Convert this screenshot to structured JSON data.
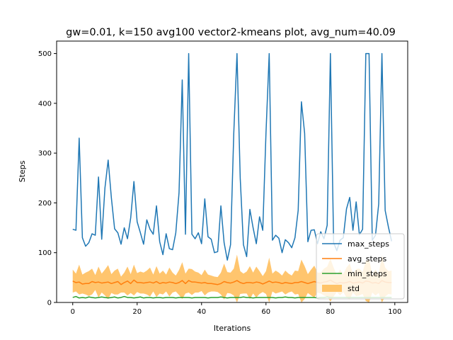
{
  "chart_data": {
    "type": "line",
    "title": "gw=0.01, k=150 avg100 vector2-kmeans plot, avg_num=40.09",
    "xlabel": "Iterations",
    "ylabel": "Steps",
    "xlim": [
      -5,
      104
    ],
    "ylim": [
      0,
      525
    ],
    "xticks": [
      0,
      20,
      40,
      60,
      80,
      100
    ],
    "yticks": [
      0,
      100,
      200,
      300,
      400,
      500
    ],
    "grid": false,
    "legend_position": "lower-right",
    "x": [
      0,
      1,
      2,
      3,
      4,
      5,
      6,
      7,
      8,
      9,
      10,
      11,
      12,
      13,
      14,
      15,
      16,
      17,
      18,
      19,
      20,
      21,
      22,
      23,
      24,
      25,
      26,
      27,
      28,
      29,
      30,
      31,
      32,
      33,
      34,
      35,
      36,
      37,
      38,
      39,
      40,
      41,
      42,
      43,
      44,
      45,
      46,
      47,
      48,
      49,
      50,
      51,
      52,
      53,
      54,
      55,
      56,
      57,
      58,
      59,
      60,
      61,
      62,
      63,
      64,
      65,
      66,
      67,
      68,
      69,
      70,
      71,
      72,
      73,
      74,
      75,
      76,
      77,
      78,
      79,
      80,
      81,
      82,
      83,
      84,
      85,
      86,
      87,
      88,
      89,
      90,
      91,
      92,
      93,
      94,
      95,
      96,
      97,
      98,
      99
    ],
    "series": [
      {
        "name": "max_steps",
        "color": "#1f77b4",
        "kind": "line",
        "values": [
          147,
          145,
          330,
          130,
          113,
          120,
          138,
          135,
          252,
          127,
          230,
          286,
          210,
          148,
          140,
          117,
          150,
          128,
          170,
          243,
          162,
          140,
          117,
          166,
          147,
          137,
          194,
          122,
          96,
          138,
          108,
          106,
          140,
          220,
          447,
          137,
          500,
          137,
          128,
          140,
          118,
          208,
          132,
          127,
          100,
          102,
          194,
          120,
          85,
          116,
          340,
          500,
          250,
          116,
          92,
          187,
          150,
          118,
          172,
          145,
          340,
          500,
          125,
          135,
          129,
          100,
          126,
          120,
          110,
          130,
          185,
          403,
          340,
          122,
          145,
          146,
          118,
          142,
          128,
          155,
          500,
          120,
          104,
          125,
          130,
          188,
          211,
          145,
          202,
          136,
          147,
          500,
          500,
          125,
          135,
          198,
          500,
          185,
          152,
          123
        ]
      },
      {
        "name": "avg_steps",
        "color": "#ff7f0e",
        "kind": "line",
        "values": [
          43,
          40,
          41,
          37,
          38,
          38,
          42,
          40,
          41,
          39,
          40,
          41,
          38,
          40,
          42,
          36,
          40,
          43,
          38,
          45,
          40,
          40,
          39,
          40,
          41,
          39,
          42,
          38,
          40,
          39,
          41,
          40,
          38,
          40,
          44,
          38,
          44,
          41,
          41,
          40,
          39,
          40,
          38,
          38,
          37,
          36,
          38,
          42,
          40,
          39,
          41,
          44,
          40,
          38,
          40,
          40,
          39,
          41,
          40,
          37,
          40,
          43,
          40,
          41,
          40,
          38,
          40,
          39,
          38,
          40,
          40,
          42,
          40,
          38,
          40,
          42,
          40,
          39,
          41,
          42,
          45,
          41,
          38,
          40,
          39,
          40,
          42,
          39,
          40,
          41,
          39,
          43,
          42,
          39,
          40,
          38,
          44,
          41,
          40,
          40
        ]
      },
      {
        "name": "min_steps",
        "color": "#2ca02c",
        "kind": "line",
        "values": [
          10,
          12,
          9,
          10,
          9,
          11,
          10,
          9,
          10,
          11,
          10,
          9,
          10,
          11,
          9,
          10,
          12,
          10,
          10,
          9,
          10,
          11,
          9,
          10,
          10,
          9,
          10,
          10,
          9,
          10,
          10,
          10,
          9,
          10,
          10,
          10,
          10,
          9,
          10,
          10,
          10,
          10,
          9,
          10,
          10,
          10,
          11,
          10,
          9,
          10,
          10,
          10,
          10,
          11,
          10,
          10,
          9,
          10,
          10,
          10,
          10,
          10,
          10,
          9,
          10,
          10,
          11,
          10,
          10,
          9,
          10,
          10,
          10,
          10,
          10,
          10,
          9,
          10,
          10,
          11,
          10,
          10,
          10,
          10,
          10,
          10,
          10,
          10,
          10,
          10,
          10,
          10,
          10,
          10,
          10,
          10,
          10,
          10,
          10,
          10
        ]
      },
      {
        "name": "std",
        "color": "#ffbb55",
        "kind": "band",
        "upper": [
          66,
          58,
          76,
          56,
          60,
          63,
          68,
          55,
          72,
          58,
          66,
          75,
          57,
          64,
          68,
          52,
          60,
          72,
          57,
          76,
          59,
          62,
          60,
          64,
          70,
          56,
          73,
          58,
          64,
          56,
          70,
          60,
          54,
          65,
          81,
          58,
          68,
          67,
          62,
          60,
          55,
          66,
          56,
          54,
          52,
          51,
          60,
          78,
          61,
          60,
          68,
          96,
          63,
          58,
          62,
          73,
          60,
          72,
          63,
          53,
          63,
          90,
          58,
          64,
          60,
          54,
          64,
          58,
          54,
          64,
          63,
          86,
          73,
          57,
          66,
          74,
          60,
          60,
          68,
          72,
          88,
          70,
          55,
          66,
          57,
          70,
          78,
          58,
          67,
          68,
          61,
          83,
          86,
          58,
          66,
          57,
          95,
          70,
          63,
          64
        ],
        "lower": [
          20,
          22,
          16,
          18,
          16,
          13,
          16,
          25,
          10,
          20,
          14,
          7,
          19,
          16,
          16,
          20,
          20,
          14,
          19,
          14,
          21,
          18,
          18,
          16,
          12,
          22,
          11,
          18,
          16,
          22,
          12,
          20,
          22,
          15,
          7,
          18,
          20,
          15,
          20,
          20,
          23,
          14,
          20,
          22,
          22,
          21,
          16,
          6,
          19,
          18,
          14,
          0,
          17,
          18,
          18,
          7,
          18,
          10,
          17,
          21,
          17,
          0,
          22,
          18,
          20,
          22,
          16,
          20,
          22,
          16,
          17,
          0,
          7,
          19,
          14,
          10,
          20,
          18,
          14,
          12,
          2,
          12,
          21,
          14,
          21,
          10,
          6,
          20,
          13,
          14,
          17,
          3,
          0,
          20,
          14,
          19,
          0,
          12,
          17,
          16
        ]
      }
    ]
  }
}
